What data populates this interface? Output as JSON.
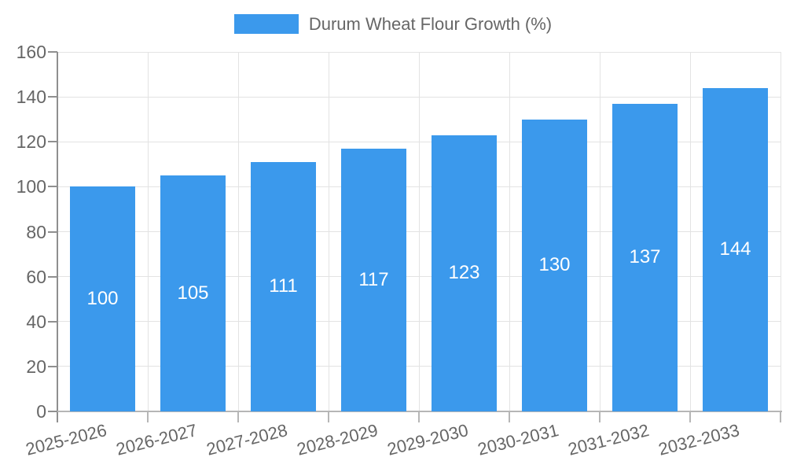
{
  "legend": {
    "label": "Durum Wheat Flour Growth (%)"
  },
  "chart_data": {
    "type": "bar",
    "title": "",
    "categories": [
      "2025-2026",
      "2026-2027",
      "2027-2028",
      "2028-2029",
      "2029-2030",
      "2030-2031",
      "2031-2032",
      "2032-2033"
    ],
    "values": [
      100,
      105,
      111,
      117,
      123,
      130,
      137,
      144
    ],
    "series_name": "Durum Wheat Flour Growth (%)",
    "xlabel": "",
    "ylabel": "",
    "ylim": [
      0,
      160
    ],
    "yticks": [
      0,
      20,
      40,
      60,
      80,
      100,
      120,
      140,
      160
    ],
    "grid": true,
    "legend_position": "top",
    "bar_value_labels_inside": true
  },
  "colors": {
    "bar": "#3b99ec",
    "bar_value_label": "#ffffff",
    "tick_label": "#666666",
    "legend_label": "#666666",
    "gridline": "#e3e3e3",
    "axis_line": "#8f8f8f",
    "baseline": "#b6b6b6"
  }
}
